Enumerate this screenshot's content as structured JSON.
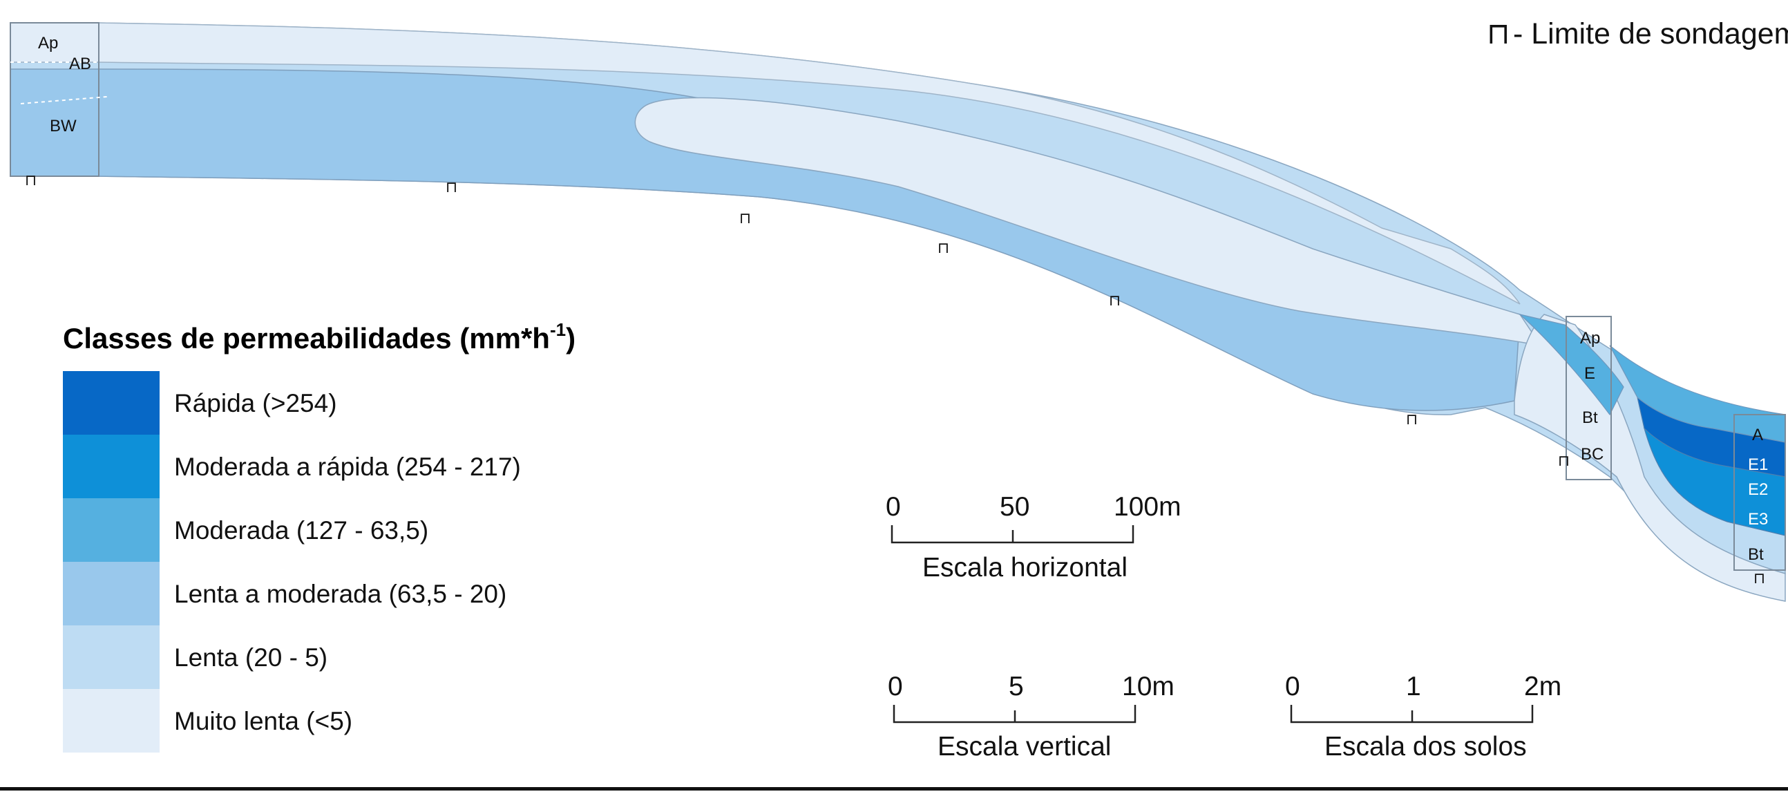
{
  "note": {
    "symbol": "⊓",
    "text": "- Limite de sondagem"
  },
  "legend": {
    "title": "Classes de permeabilidades (mm*h",
    "title_exp": "-1",
    "title_close": ")",
    "items": [
      {
        "label": "Rápida (>254)",
        "color": "#0768c6"
      },
      {
        "label": "Moderada a rápida  (254 - 217)",
        "color": "#0e90d8"
      },
      {
        "label": "Moderada (127 - 63,5)",
        "color": "#55b0e0"
      },
      {
        "label": "Lenta a moderada (63,5 - 20)",
        "color": "#99c8ec"
      },
      {
        "label": "Lenta (20 - 5)",
        "color": "#bedcf3"
      },
      {
        "label": "Muito lenta (<5)",
        "color": "#e2edf8"
      }
    ]
  },
  "horizons": {
    "left_profile": [
      "Ap",
      "AB",
      "BW"
    ],
    "middle_profile": [
      "Ap",
      "E",
      "Bt",
      "BC"
    ],
    "right_profile": [
      "A",
      "E1",
      "E2",
      "E3",
      "Bt"
    ]
  },
  "probe_symbol": "⊓",
  "scales": {
    "horizontal": {
      "ticks": [
        "0",
        "50",
        "100m"
      ],
      "label": "Escala horizontal"
    },
    "vertical": {
      "ticks": [
        "0",
        "5",
        "10m"
      ],
      "label": "Escala vertical"
    },
    "soils": {
      "ticks": [
        "0",
        "1",
        "2m"
      ],
      "label": "Escala dos solos"
    }
  }
}
